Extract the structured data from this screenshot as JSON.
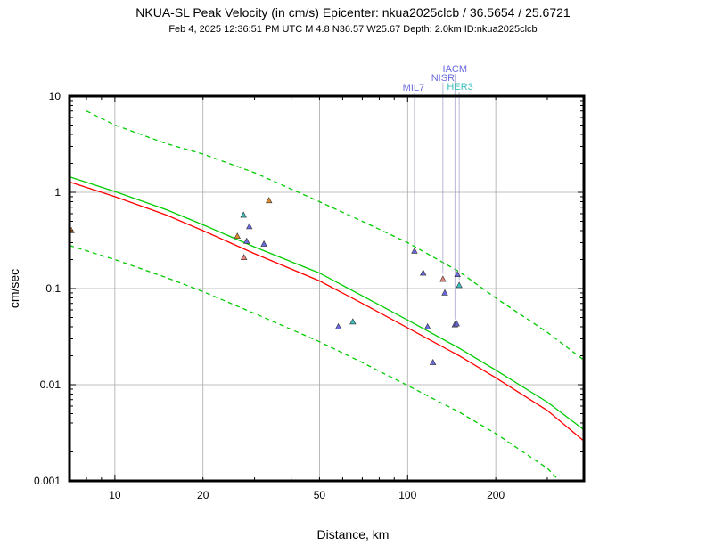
{
  "chart_data": {
    "type": "scatter",
    "title": "NKUA-SL Peak Velocity (in cm/s) Epicenter: nkua2025clcb / 36.5654 / 25.6721",
    "subtitle": "Feb  4, 2025 12:36:51 PM UTC   M 4.8   N36.57 W25.67   Depth: 2.0km   ID:nkua2025clcb",
    "xlabel": "Distance, km",
    "ylabel": "cm/sec",
    "xscale": "log",
    "yscale": "log",
    "xlim": [
      7,
      400
    ],
    "ylim": [
      0.001,
      10
    ],
    "xticks": [
      {
        "v": 10,
        "label": "10"
      },
      {
        "v": 20,
        "label": "20"
      },
      {
        "v": 50,
        "label": "50"
      },
      {
        "v": 100,
        "label": "100"
      },
      {
        "v": 200,
        "label": "200"
      }
    ],
    "yticks": [
      {
        "v": 0.001,
        "label": "0.001"
      },
      {
        "v": 0.01,
        "label": "0.01"
      },
      {
        "v": 0.1,
        "label": "0.1"
      },
      {
        "v": 1,
        "label": "1"
      },
      {
        "v": 10,
        "label": "10"
      }
    ],
    "grid": true,
    "curves": [
      {
        "name": "prediction",
        "color": "#ff0000",
        "dashed": false,
        "x": [
          7,
          10,
          15,
          20,
          30,
          50,
          70,
          100,
          150,
          200,
          300,
          400
        ],
        "y": [
          1.28,
          0.9,
          0.58,
          0.4,
          0.23,
          0.12,
          0.07,
          0.039,
          0.02,
          0.0118,
          0.0054,
          0.0026
        ]
      },
      {
        "name": "prediction-alt",
        "color": "#00cc00",
        "dashed": false,
        "x": [
          7,
          10,
          15,
          20,
          30,
          50,
          70,
          100,
          150,
          200,
          300,
          400
        ],
        "y": [
          1.45,
          1.02,
          0.66,
          0.46,
          0.27,
          0.145,
          0.084,
          0.047,
          0.024,
          0.0142,
          0.0066,
          0.0034
        ]
      },
      {
        "name": "upper-bound",
        "color": "#00cc00",
        "dashed": true,
        "x": [
          8,
          10,
          15,
          20,
          30,
          50,
          70,
          100,
          150,
          200,
          300,
          400
        ],
        "y": [
          7.0,
          5.0,
          3.2,
          2.5,
          1.6,
          0.8,
          0.5,
          0.3,
          0.15,
          0.08,
          0.035,
          0.018
        ]
      },
      {
        "name": "lower-bound",
        "color": "#00cc00",
        "dashed": true,
        "x": [
          7,
          10,
          15,
          20,
          30,
          50,
          70,
          100,
          150,
          200,
          300,
          330
        ],
        "y": [
          0.28,
          0.2,
          0.13,
          0.093,
          0.055,
          0.028,
          0.017,
          0.0098,
          0.0052,
          0.0031,
          0.00135,
          0.001
        ]
      }
    ],
    "stations": [
      {
        "x": 7.1,
        "y": 0.4,
        "color": "#e08a30"
      },
      {
        "x": 26.2,
        "y": 0.35,
        "color": "#e08a30"
      },
      {
        "x": 27.5,
        "y": 0.58,
        "color": "#3dbfbf"
      },
      {
        "x": 27.6,
        "y": 0.21,
        "color": "#e8807a"
      },
      {
        "x": 28.2,
        "y": 0.31,
        "color": "#6a6ae0"
      },
      {
        "x": 28.8,
        "y": 0.44,
        "color": "#6a6ae0"
      },
      {
        "x": 32.3,
        "y": 0.29,
        "color": "#6a6ae0"
      },
      {
        "x": 33.6,
        "y": 0.82,
        "color": "#e08a30"
      },
      {
        "x": 58.0,
        "y": 0.04,
        "color": "#6a6ae0"
      },
      {
        "x": 65.0,
        "y": 0.045,
        "color": "#3dbfbf"
      },
      {
        "x": 105.5,
        "y": 0.245,
        "color": "#6a6ae0"
      },
      {
        "x": 113.0,
        "y": 0.145,
        "color": "#6a6ae0"
      },
      {
        "x": 117.0,
        "y": 0.04,
        "color": "#6a6ae0"
      },
      {
        "x": 122.0,
        "y": 0.017,
        "color": "#6a6ae0"
      },
      {
        "x": 132.0,
        "y": 0.125,
        "color": "#e8807a"
      },
      {
        "x": 134.0,
        "y": 0.09,
        "color": "#6a6ae0"
      },
      {
        "x": 145.0,
        "y": 0.042,
        "color": "#6a6ae0"
      },
      {
        "x": 147.0,
        "y": 0.043,
        "color": "#6a6ae0"
      },
      {
        "x": 148.0,
        "y": 0.14,
        "color": "#6a6ae0"
      },
      {
        "x": 150.0,
        "y": 0.108,
        "color": "#3dbfbf"
      }
    ],
    "station_labels": [
      {
        "name": "MIL7",
        "x": 105.5,
        "color": "#6a6ae0"
      },
      {
        "name": "NISR",
        "x": 132.0,
        "color": "#6a6ae0"
      },
      {
        "name": "IACM",
        "x": 145.0,
        "color": "#6a6ae0"
      },
      {
        "name": "HER3",
        "x": 150.0,
        "color": "#3dbfbf"
      }
    ]
  }
}
